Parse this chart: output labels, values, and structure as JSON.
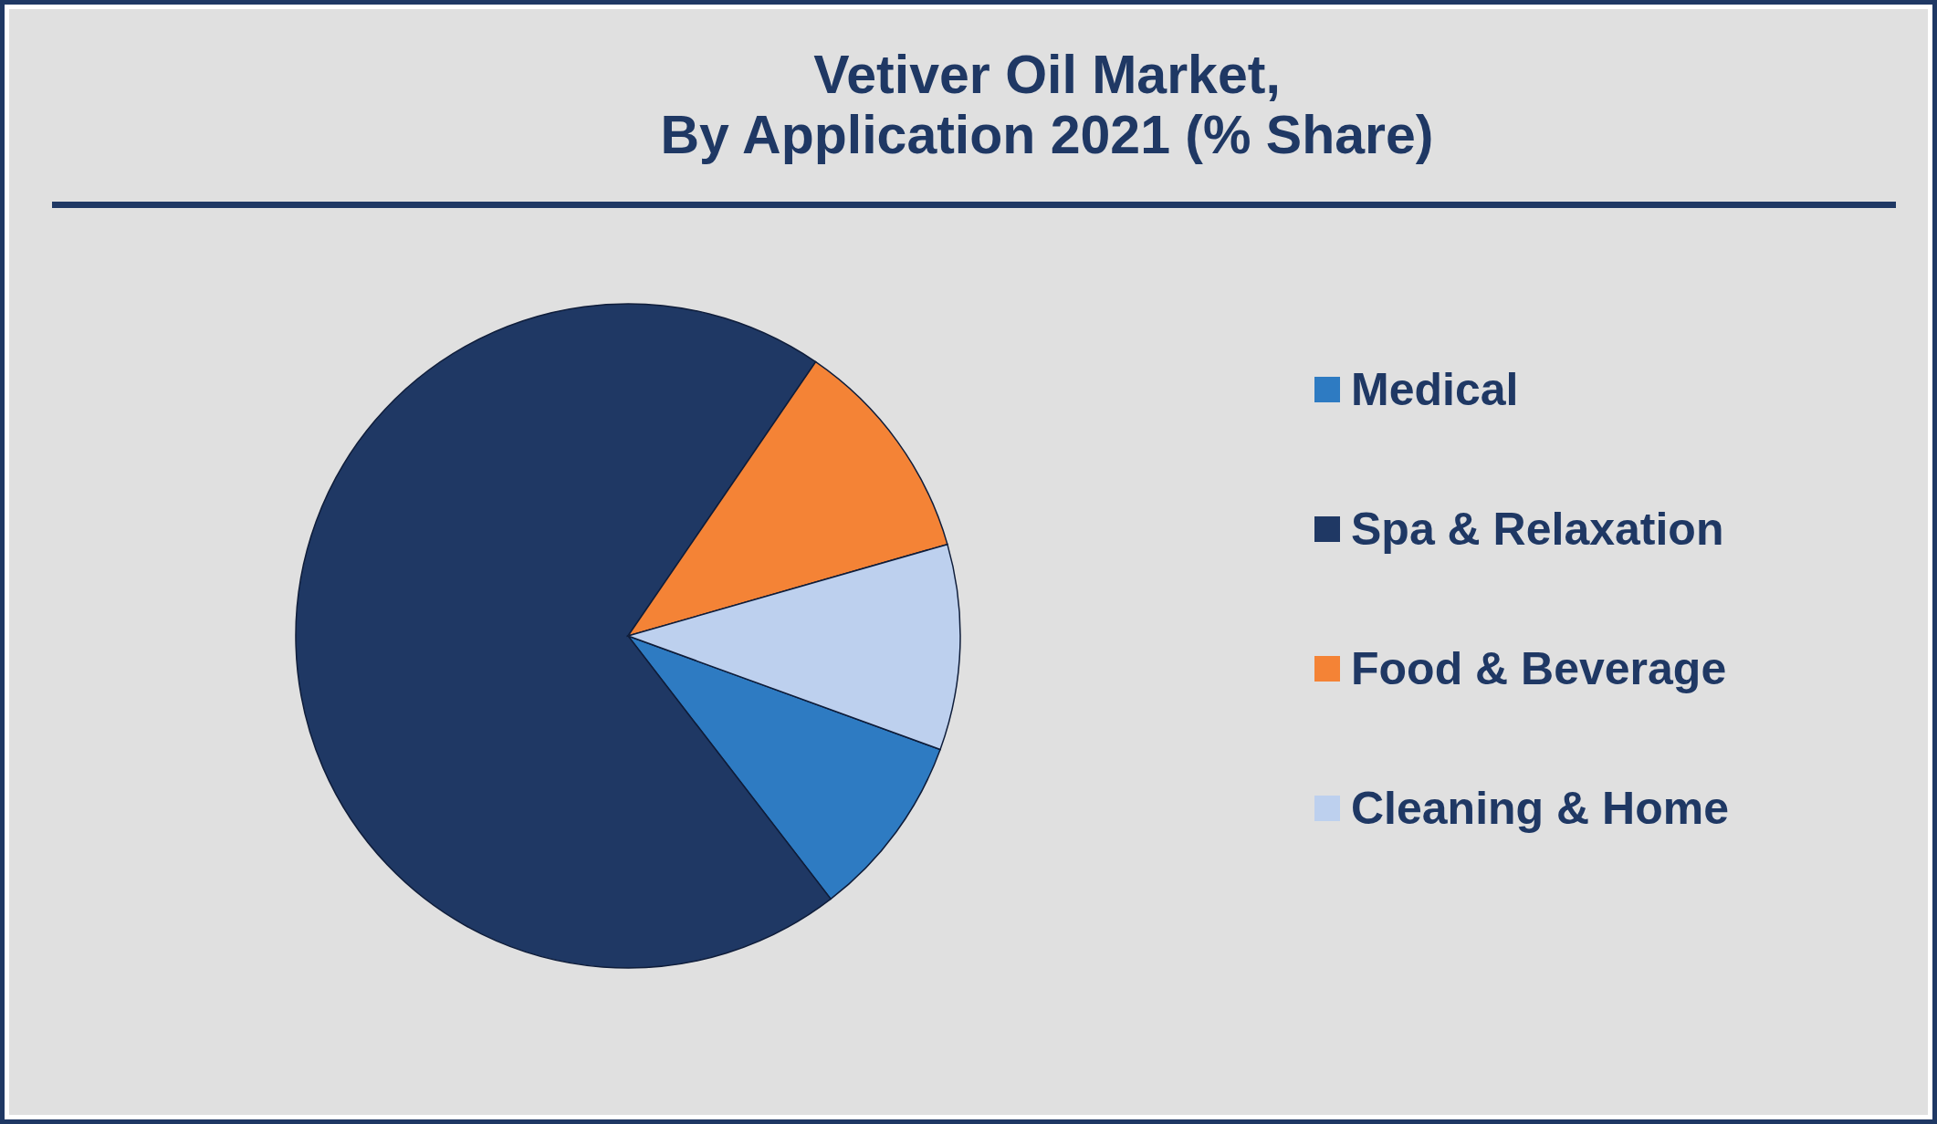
{
  "chart_data": {
    "type": "pie",
    "title": "Vetiver Oil Market,\nBy Application 2021 (% Share)",
    "categories": [
      "Medical",
      "Spa & Relaxation",
      "Food & Beverage",
      "Cleaning & Home"
    ],
    "values": [
      9,
      70,
      11,
      10
    ],
    "colors": [
      "#2e7bc2",
      "#1f3864",
      "#f48336",
      "#bdd0ee"
    ],
    "legend": "right"
  }
}
